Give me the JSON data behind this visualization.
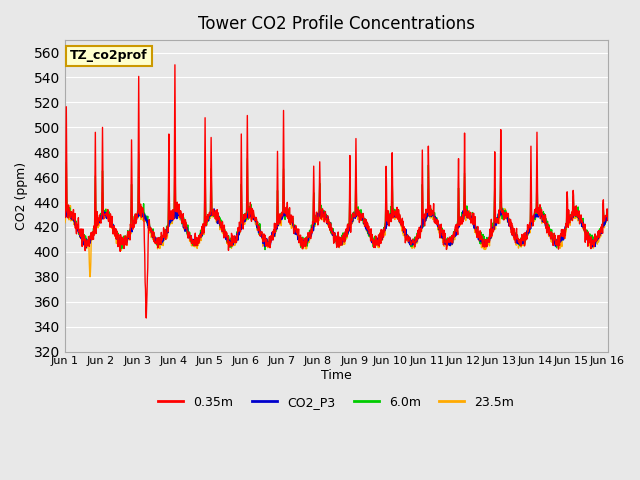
{
  "title": "Tower CO2 Profile Concentrations",
  "xlabel": "Time",
  "ylabel": "CO2 (ppm)",
  "ylim": [
    320,
    570
  ],
  "yticks": [
    320,
    340,
    360,
    380,
    400,
    420,
    440,
    460,
    480,
    500,
    520,
    540,
    560
  ],
  "xlim": [
    0,
    15
  ],
  "xtick_labels": [
    "Jun 1",
    "Jun 2",
    "Jun 3",
    "Jun 4",
    "Jun 5",
    "Jun 6",
    "Jun 7",
    "Jun 8",
    "Jun 9",
    "Jun 10",
    "Jun 11",
    "Jun 12",
    "Jun 13",
    "Jun 14",
    "Jun 15",
    "Jun 16"
  ],
  "annotation_text": "TZ_co2prof",
  "annotation_box_color": "#ffffcc",
  "annotation_box_edge": "#cc9900",
  "bg_color": "#e8e8e8",
  "plot_bg_color": "#e8e8e8",
  "grid_color": "white",
  "series": {
    "red": {
      "label": "0.35m",
      "color": "#ff0000",
      "lw": 1.0
    },
    "blue": {
      "label": "CO2_P3",
      "color": "#0000cc",
      "lw": 1.2
    },
    "green": {
      "label": "6.0m",
      "color": "#00cc00",
      "lw": 1.0
    },
    "orange": {
      "label": "23.5m",
      "color": "#ffaa00",
      "lw": 1.0
    }
  },
  "legend_dash_colors": [
    "#ff0000",
    "#0000cc",
    "#00cc00",
    "#ffaa00"
  ],
  "legend_labels": [
    "0.35m",
    "CO2_P3",
    "6.0m",
    "23.5m"
  ]
}
